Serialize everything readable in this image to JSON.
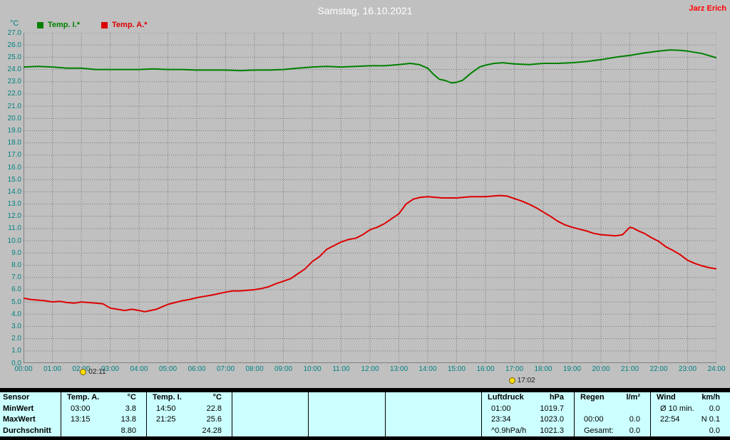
{
  "header": {
    "title": "Samstag, 16.10.2021",
    "user": "Jarz Erich"
  },
  "legend": {
    "unit": "°C",
    "series": [
      {
        "label": "Temp. I.*",
        "color": "#008000"
      },
      {
        "label": "Temp. A.*",
        "color": "#dd0000"
      }
    ]
  },
  "colors": {
    "plot_bg": "#c0c0c0",
    "axis_text": "#008080",
    "title_text": "#ffffff",
    "user_text": "#ff0000",
    "table_bg": "#ccffff",
    "temp_i_line": "#008000",
    "temp_a_line": "#dd0000"
  },
  "chart_data": {
    "type": "line",
    "title": "Samstag, 16.10.2021",
    "xlabel": "",
    "ylabel": "°C",
    "xlim": [
      0,
      24
    ],
    "ylim": [
      0,
      27
    ],
    "grid": true,
    "legend_position": "top-left",
    "x_ticks": [
      "00:00",
      "01:00",
      "02:00",
      "03:00",
      "04:00",
      "05:00",
      "06:00",
      "07:00",
      "08:00",
      "09:00",
      "10:00",
      "11:00",
      "12:00",
      "13:00",
      "14:00",
      "15:00",
      "16:00",
      "17:00",
      "18:00",
      "19:00",
      "20:00",
      "21:00",
      "22:00",
      "23:00",
      "24:00"
    ],
    "y_ticks": [
      "27.0",
      "26.0",
      "25.0",
      "24.0",
      "23.0",
      "22.0",
      "21.0",
      "20.0",
      "19.0",
      "18.0",
      "17.0",
      "16.0",
      "15.0",
      "14.0",
      "13.0",
      "12.0",
      "11.0",
      "10.0",
      "9.0",
      "8.0",
      "7.0",
      "6.0",
      "5.0",
      "4.0",
      "3.0",
      "2.0",
      "1.0",
      "0.0"
    ],
    "series": [
      {
        "name": "Temp. I.*",
        "color": "#008000",
        "points": [
          [
            0,
            24.2
          ],
          [
            0.5,
            24.25
          ],
          [
            1,
            24.2
          ],
          [
            1.5,
            24.1
          ],
          [
            2,
            24.1
          ],
          [
            2.5,
            24.0
          ],
          [
            3,
            24.0
          ],
          [
            3.5,
            24.0
          ],
          [
            4,
            24.0
          ],
          [
            4.5,
            24.05
          ],
          [
            5,
            24.0
          ],
          [
            5.5,
            24.0
          ],
          [
            6,
            23.95
          ],
          [
            6.5,
            23.95
          ],
          [
            7,
            23.95
          ],
          [
            7.5,
            23.9
          ],
          [
            8,
            23.95
          ],
          [
            8.5,
            23.95
          ],
          [
            9,
            24.0
          ],
          [
            9.5,
            24.1
          ],
          [
            10,
            24.2
          ],
          [
            10.5,
            24.25
          ],
          [
            11,
            24.2
          ],
          [
            11.5,
            24.25
          ],
          [
            12,
            24.3
          ],
          [
            12.5,
            24.3
          ],
          [
            13,
            24.4
          ],
          [
            13.4,
            24.5
          ],
          [
            13.7,
            24.4
          ],
          [
            14,
            24.1
          ],
          [
            14.2,
            23.6
          ],
          [
            14.4,
            23.2
          ],
          [
            14.6,
            23.1
          ],
          [
            14.83,
            22.9
          ],
          [
            15,
            22.95
          ],
          [
            15.2,
            23.1
          ],
          [
            15.5,
            23.7
          ],
          [
            15.8,
            24.2
          ],
          [
            16,
            24.35
          ],
          [
            16.3,
            24.5
          ],
          [
            16.6,
            24.55
          ],
          [
            16.8,
            24.5
          ],
          [
            17,
            24.45
          ],
          [
            17.5,
            24.4
          ],
          [
            18,
            24.5
          ],
          [
            18.5,
            24.5
          ],
          [
            19,
            24.55
          ],
          [
            19.5,
            24.65
          ],
          [
            20,
            24.8
          ],
          [
            20.5,
            25.0
          ],
          [
            21,
            25.15
          ],
          [
            21.5,
            25.35
          ],
          [
            22,
            25.5
          ],
          [
            22.4,
            25.6
          ],
          [
            22.8,
            25.55
          ],
          [
            23,
            25.5
          ],
          [
            23.5,
            25.3
          ],
          [
            24,
            24.95
          ]
        ]
      },
      {
        "name": "Temp. A.*",
        "color": "#dd0000",
        "points": [
          [
            0,
            5.3
          ],
          [
            0.25,
            5.2
          ],
          [
            0.5,
            5.15
          ],
          [
            0.75,
            5.1
          ],
          [
            1,
            5.0
          ],
          [
            1.25,
            5.05
          ],
          [
            1.5,
            4.95
          ],
          [
            1.75,
            4.9
          ],
          [
            2,
            5.0
          ],
          [
            2.25,
            4.95
          ],
          [
            2.5,
            4.9
          ],
          [
            2.75,
            4.85
          ],
          [
            3,
            4.5
          ],
          [
            3.25,
            4.4
          ],
          [
            3.5,
            4.3
          ],
          [
            3.75,
            4.4
          ],
          [
            4,
            4.3
          ],
          [
            4.2,
            4.2
          ],
          [
            4.4,
            4.3
          ],
          [
            4.6,
            4.4
          ],
          [
            4.8,
            4.6
          ],
          [
            5,
            4.8
          ],
          [
            5.25,
            4.95
          ],
          [
            5.5,
            5.1
          ],
          [
            5.75,
            5.2
          ],
          [
            6,
            5.35
          ],
          [
            6.25,
            5.45
          ],
          [
            6.5,
            5.55
          ],
          [
            7,
            5.8
          ],
          [
            7.25,
            5.9
          ],
          [
            7.5,
            5.9
          ],
          [
            7.75,
            5.95
          ],
          [
            8,
            6.0
          ],
          [
            8.25,
            6.1
          ],
          [
            8.5,
            6.25
          ],
          [
            8.75,
            6.5
          ],
          [
            9,
            6.7
          ],
          [
            9.25,
            6.9
          ],
          [
            9.5,
            7.3
          ],
          [
            9.75,
            7.7
          ],
          [
            10,
            8.3
          ],
          [
            10.25,
            8.7
          ],
          [
            10.5,
            9.3
          ],
          [
            10.75,
            9.6
          ],
          [
            11,
            9.9
          ],
          [
            11.25,
            10.1
          ],
          [
            11.5,
            10.2
          ],
          [
            11.75,
            10.5
          ],
          [
            12,
            10.9
          ],
          [
            12.25,
            11.1
          ],
          [
            12.5,
            11.4
          ],
          [
            12.75,
            11.8
          ],
          [
            13,
            12.2
          ],
          [
            13.25,
            13.0
          ],
          [
            13.5,
            13.4
          ],
          [
            13.75,
            13.55
          ],
          [
            14,
            13.6
          ],
          [
            14.25,
            13.55
          ],
          [
            14.5,
            13.5
          ],
          [
            15,
            13.5
          ],
          [
            15.5,
            13.6
          ],
          [
            16,
            13.6
          ],
          [
            16.25,
            13.65
          ],
          [
            16.5,
            13.7
          ],
          [
            16.75,
            13.65
          ],
          [
            17,
            13.45
          ],
          [
            17.25,
            13.25
          ],
          [
            17.5,
            13.0
          ],
          [
            17.75,
            12.7
          ],
          [
            18,
            12.35
          ],
          [
            18.25,
            12.0
          ],
          [
            18.5,
            11.6
          ],
          [
            18.75,
            11.3
          ],
          [
            19,
            11.1
          ],
          [
            19.25,
            10.95
          ],
          [
            19.5,
            10.8
          ],
          [
            19.75,
            10.6
          ],
          [
            20,
            10.5
          ],
          [
            20.25,
            10.45
          ],
          [
            20.5,
            10.4
          ],
          [
            20.75,
            10.5
          ],
          [
            21,
            11.1
          ],
          [
            21.1,
            11.05
          ],
          [
            21.3,
            10.8
          ],
          [
            21.5,
            10.6
          ],
          [
            21.75,
            10.25
          ],
          [
            22,
            9.95
          ],
          [
            22.25,
            9.5
          ],
          [
            22.5,
            9.2
          ],
          [
            22.75,
            8.85
          ],
          [
            23,
            8.4
          ],
          [
            23.25,
            8.15
          ],
          [
            23.5,
            7.95
          ],
          [
            23.75,
            7.8
          ],
          [
            24,
            7.7
          ]
        ]
      }
    ],
    "markers": [
      {
        "label": "02:11",
        "hour": 2.18,
        "row": 0
      },
      {
        "label": "17:02",
        "hour": 17.03,
        "row": 1
      }
    ]
  },
  "table": {
    "row_labels": [
      "Sensor",
      "MinWert",
      "MaxWert",
      "Durchschnitt"
    ],
    "columns": [
      {
        "name": "Temp. A.",
        "unit": "°C",
        "min": [
          "03:00",
          "3.8"
        ],
        "max": [
          "13:15",
          "13.8"
        ],
        "avg": [
          "",
          "8.80"
        ]
      },
      {
        "name": "Temp. I.",
        "unit": "°C",
        "min": [
          "14:50",
          "22.8"
        ],
        "max": [
          "21:25",
          "25.6"
        ],
        "avg": [
          "",
          "24.28"
        ]
      },
      {
        "name": "",
        "unit": "",
        "min": [
          "",
          ""
        ],
        "max": [
          "",
          ""
        ],
        "avg": [
          "",
          ""
        ]
      },
      {
        "name": "",
        "unit": "",
        "min": [
          "",
          ""
        ],
        "max": [
          "",
          ""
        ],
        "avg": [
          "",
          ""
        ]
      },
      {
        "name": "",
        "unit": "",
        "min": [
          "",
          ""
        ],
        "max": [
          "",
          ""
        ],
        "avg": [
          "",
          ""
        ]
      },
      {
        "name": "Luftdruck",
        "unit": "hPa",
        "min": [
          "01:00",
          "1019.7"
        ],
        "max": [
          "23:34",
          "1023.0"
        ],
        "avg": [
          "^0.9hPa/h",
          "1021.3"
        ]
      },
      {
        "name": "Regen",
        "unit": "l/m²",
        "min": [
          "",
          ""
        ],
        "max": [
          "00:00",
          "0.0"
        ],
        "avg": [
          "Gesamt:",
          "0.0"
        ]
      },
      {
        "name": "Wind",
        "unit": "km/h",
        "min": [
          "Ø 10 min.",
          "0.0"
        ],
        "max": [
          "22:54",
          "N 0.1"
        ],
        "avg": [
          "",
          "0.0"
        ]
      }
    ]
  }
}
